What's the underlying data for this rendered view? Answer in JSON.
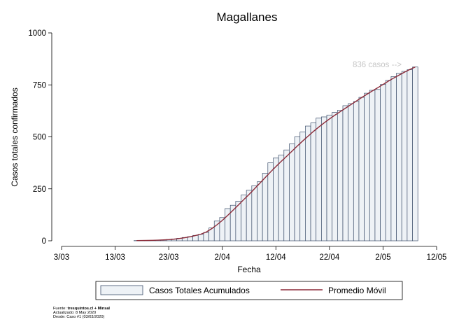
{
  "chart_data": {
    "type": "bar",
    "title": "Magallanes",
    "xlabel": "Fecha",
    "ylabel": "Casos totales confirmados",
    "ylim": [
      0,
      1000
    ],
    "yticks": [
      0,
      250,
      500,
      750,
      1000
    ],
    "xlim": [
      "2020-03-03",
      "2020-05-12"
    ],
    "xticks": [
      "3/03",
      "13/03",
      "23/03",
      "2/04",
      "12/04",
      "22/04",
      "2/05",
      "12/05"
    ],
    "grid": false,
    "legend_position": "bottom",
    "annotation": "836 casos -->",
    "dates": [
      "2020-03-17",
      "2020-03-18",
      "2020-03-19",
      "2020-03-20",
      "2020-03-21",
      "2020-03-22",
      "2020-03-23",
      "2020-03-24",
      "2020-03-25",
      "2020-03-26",
      "2020-03-27",
      "2020-03-28",
      "2020-03-29",
      "2020-03-30",
      "2020-03-31",
      "2020-04-01",
      "2020-04-02",
      "2020-04-03",
      "2020-04-04",
      "2020-04-05",
      "2020-04-06",
      "2020-04-07",
      "2020-04-08",
      "2020-04-09",
      "2020-04-10",
      "2020-04-11",
      "2020-04-12",
      "2020-04-13",
      "2020-04-14",
      "2020-04-15",
      "2020-04-16",
      "2020-04-17",
      "2020-04-18",
      "2020-04-19",
      "2020-04-20",
      "2020-04-21",
      "2020-04-22",
      "2020-04-23",
      "2020-04-24",
      "2020-04-25",
      "2020-04-26",
      "2020-04-27",
      "2020-04-28",
      "2020-04-29",
      "2020-04-30",
      "2020-05-01",
      "2020-05-02",
      "2020-05-03",
      "2020-05-04",
      "2020-05-05",
      "2020-05-06",
      "2020-05-07",
      "2020-05-08"
    ],
    "series": [
      {
        "name": "Casos Totales Acumulados",
        "type": "bar",
        "color": "#eef2f6",
        "edge_color": "#3d4f6b",
        "values": [
          1,
          1,
          2,
          2,
          3,
          4,
          6,
          9,
          12,
          16,
          20,
          26,
          31,
          40,
          62,
          95,
          112,
          155,
          171,
          190,
          220,
          243,
          265,
          284,
          325,
          375,
          398,
          412,
          437,
          466,
          500,
          523,
          552,
          567,
          590,
          596,
          605,
          618,
          628,
          650,
          660,
          670,
          690,
          710,
          724,
          728,
          752,
          772,
          790,
          806,
          815,
          823,
          836
        ]
      },
      {
        "name": "Promedio Móvil",
        "type": "line",
        "color": "#8b2a38",
        "values": [
          1,
          1.3,
          1.7,
          2.3,
          3,
          4.2,
          5.8,
          8,
          11,
          15,
          19.7,
          25.3,
          32,
          42,
          58,
          77,
          98,
          122,
          147,
          172,
          198,
          223,
          250,
          277,
          304,
          331,
          357,
          382,
          406,
          431,
          456,
          480,
          503,
          526,
          547,
          567,
          586,
          604,
          621,
          638,
          655,
          672,
          689,
          705,
          721,
          736,
          752,
          768,
          783,
          797,
          811,
          824,
          836
        ]
      }
    ]
  },
  "footer": {
    "line1_prefix": "Fuente: ",
    "line1_bold": "tresquintos.cl + Minsal",
    "line2": "Actualizado: 8 May 2020",
    "line3": "Desde: Caso #1  (03/03/2020)"
  }
}
